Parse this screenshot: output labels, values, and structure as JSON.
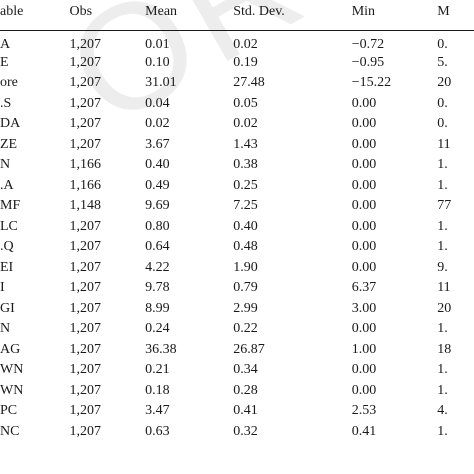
{
  "watermark": "OR",
  "table": {
    "headers": [
      "able",
      "Obs",
      "Mean",
      "Std. Dev.",
      "Min",
      "M"
    ],
    "rows": [
      [
        "A",
        "1,207",
        "0.01",
        "0.02",
        "−0.72",
        "0."
      ],
      [
        "E",
        "1,207",
        "0.10",
        "0.19",
        "−0.95",
        "5."
      ],
      [
        "ore",
        "1,207",
        "31.01",
        "27.48",
        "−15.22",
        "20"
      ],
      [
        ".S",
        "1,207",
        "0.04",
        "0.05",
        "0.00",
        "0."
      ],
      [
        "DA",
        "1,207",
        "0.02",
        "0.02",
        "0.00",
        "0."
      ],
      [
        "ZE",
        "1,207",
        "3.67",
        "1.43",
        "0.00",
        "11"
      ],
      [
        "N",
        "1,166",
        "0.40",
        "0.38",
        "0.00",
        "1."
      ],
      [
        ".A",
        "1,166",
        "0.49",
        "0.25",
        "0.00",
        "1."
      ],
      [
        "MF",
        "1,148",
        "9.69",
        "7.25",
        "0.00",
        "77"
      ],
      [
        "LC",
        "1,207",
        "0.80",
        "0.40",
        "0.00",
        "1."
      ],
      [
        ".Q",
        "1,207",
        "0.64",
        "0.48",
        "0.00",
        "1."
      ],
      [
        "EI",
        "1,207",
        "4.22",
        "1.90",
        "0.00",
        "9."
      ],
      [
        "I",
        "1,207",
        "9.78",
        "0.79",
        "6.37",
        "11"
      ],
      [
        "GI",
        "1,207",
        "8.99",
        "2.99",
        "3.00",
        "20"
      ],
      [
        "N",
        "1,207",
        "0.24",
        "0.22",
        "0.00",
        "1."
      ],
      [
        "AG",
        "1,207",
        "36.38",
        "26.87",
        "1.00",
        "18"
      ],
      [
        "WN",
        "1,207",
        "0.21",
        "0.34",
        "0.00",
        "1."
      ],
      [
        "WN",
        "1,207",
        "0.18",
        "0.28",
        "0.00",
        "1."
      ],
      [
        "PC",
        "1,207",
        "3.47",
        "0.41",
        "2.53",
        "4."
      ],
      [
        "NC",
        "1,207",
        "0.63",
        "0.32",
        "0.41",
        "1."
      ]
    ]
  }
}
